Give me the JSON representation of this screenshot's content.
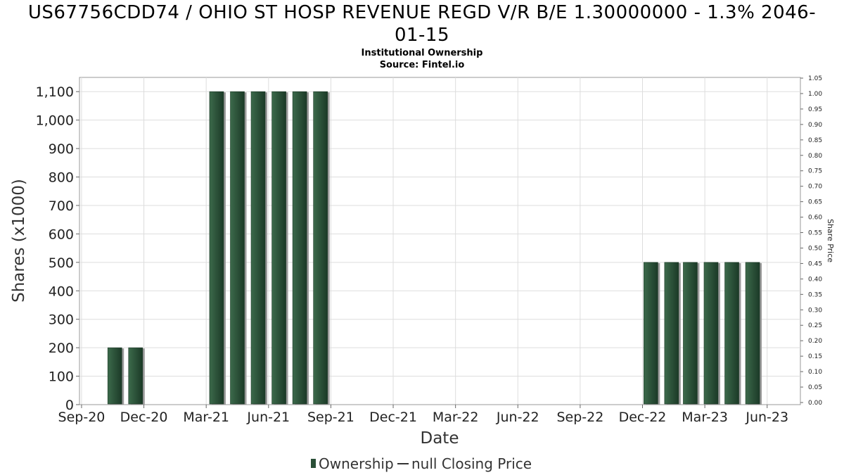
{
  "chart_data": {
    "type": "bar",
    "title_line1": "US67756CDD74 / OHIO ST HOSP REVENUE REGD V/R B/E 1.30000000 - 1.3% 2046-",
    "title_line2": "01-15",
    "subtitle": "Institutional Ownership",
    "source": "Source: Fintel.io",
    "xlabel": "Date",
    "ylabel": "Shares (x1000)",
    "ylabel_right": "Share Price",
    "ylim": [
      0,
      1150
    ],
    "ylim_right": [
      0,
      1.05
    ],
    "y_ticks": [
      0,
      100,
      200,
      300,
      400,
      500,
      600,
      700,
      800,
      900,
      1000,
      1100
    ],
    "y_tick_labels": [
      "0",
      "100",
      "200",
      "300",
      "400",
      "500",
      "600",
      "700",
      "800",
      "900",
      "1,000",
      "1,100"
    ],
    "y_right_ticks": [
      "0.00",
      "0.05",
      "0.10",
      "0.15",
      "0.20",
      "0.25",
      "0.30",
      "0.35",
      "0.40",
      "0.45",
      "0.50",
      "0.55",
      "0.60",
      "0.65",
      "0.70",
      "0.75",
      "0.80",
      "0.85",
      "0.90",
      "0.95",
      "1.00",
      "1.05"
    ],
    "x_ticks": [
      "Sep-20",
      "Dec-20",
      "Mar-21",
      "Jun-21",
      "Sep-21",
      "Dec-21",
      "Mar-22",
      "Jun-22",
      "Sep-22",
      "Dec-22",
      "Mar-23",
      "Jun-23"
    ],
    "x_range_months": [
      -0.1,
      34.6
    ],
    "series": [
      {
        "name": "Ownership",
        "color": "#2a4f37",
        "month_index": [
          1.6,
          2.6,
          6.5,
          7.5,
          8.5,
          9.5,
          10.5,
          11.5,
          27.4,
          28.4,
          29.3,
          30.3,
          31.3,
          32.3
        ],
        "values": [
          200,
          200,
          1100,
          1100,
          1100,
          1100,
          1100,
          1100,
          500,
          500,
          500,
          500,
          500,
          500
        ]
      },
      {
        "name": "null Closing Price",
        "color": "#333333",
        "values": []
      }
    ],
    "legend": [
      "Ownership",
      "null Closing Price"
    ]
  }
}
